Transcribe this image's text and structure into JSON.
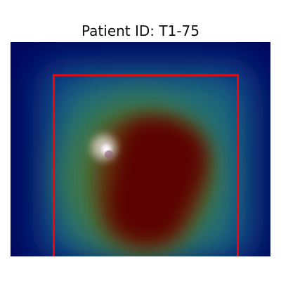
{
  "title": "Patient ID: T1-75",
  "overlay": {
    "colormap": "jet",
    "bounding_box_color": "#ff0000"
  }
}
